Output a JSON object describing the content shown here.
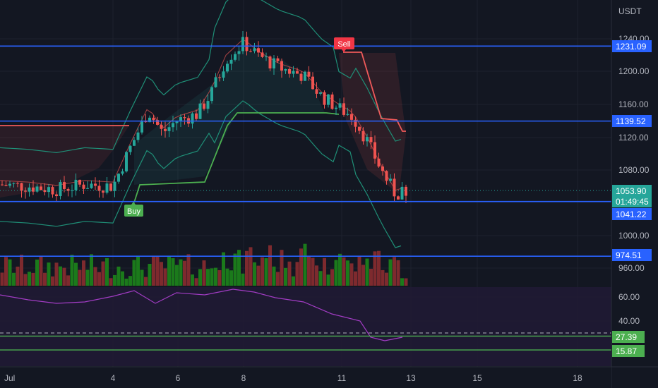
{
  "chart_data": {
    "type": "candlestick",
    "currency": "USDT",
    "price_axis_ticks": [
      "1240.00",
      "1200.00",
      "1160.00",
      "1120.00",
      "1080.00",
      "1000.00",
      "960.00"
    ],
    "rsi_axis_ticks": [
      "60.00",
      "40.00"
    ],
    "time_axis_ticks": [
      "Jul",
      "4",
      "6",
      "8",
      "11",
      "13",
      "15",
      "18"
    ],
    "horizontal_levels": [
      {
        "label": "1231.09",
        "value": 1231.09,
        "color": "#2962ff"
      },
      {
        "label": "1139.52",
        "value": 1139.52,
        "color": "#2962ff"
      },
      {
        "label": "1041.22",
        "value": 1041.22,
        "color": "#2962ff"
      },
      {
        "label": "974.51",
        "value": 974.51,
        "color": "#2962ff"
      }
    ],
    "rsi_levels": [
      {
        "label": "27.39",
        "value": 27.39,
        "color": "#4caf50"
      },
      {
        "label": "15.87",
        "value": 15.87,
        "color": "#4caf50"
      }
    ],
    "last_price": {
      "label": "1053.90",
      "countdown": "01:49:45",
      "color": "#26a69a"
    },
    "signals": [
      {
        "label": "Buy",
        "color": "#4caf50"
      },
      {
        "label": "Sell",
        "color": "#f23645"
      }
    ],
    "colors": {
      "up": "#26a69a",
      "down": "#ef5350",
      "vol_up": "#1b7a1b",
      "vol_down": "#7e2a2e",
      "band": "#1f8f77",
      "basis": "#c14a4a",
      "rsi": "#a23cc4",
      "rsi_bg": "#211a35"
    }
  }
}
